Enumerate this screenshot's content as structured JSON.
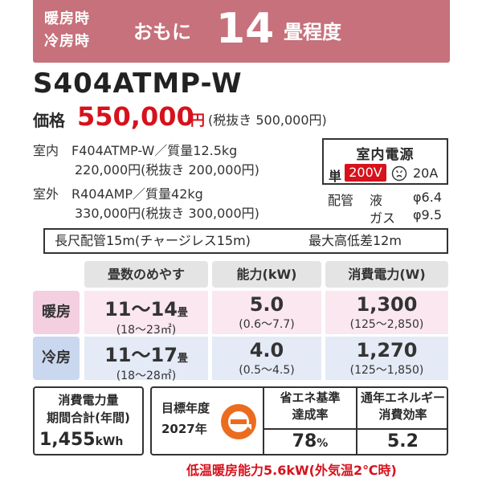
{
  "header": {
    "mode_heat": "暖房時",
    "mode_cool": "冷房時",
    "omoni": "おもに",
    "tatami_number": "14",
    "tatami_unit": "畳程度"
  },
  "model": "S404ATMP-W",
  "price": {
    "label": "価格",
    "value": "550,000",
    "yen": "円",
    "tax_note": "(税抜き 500,000円)"
  },
  "indoor": {
    "line1": "室内　F404ATMP-W／質量12.5kg",
    "line2": "220,000円(税抜き 200,000円)"
  },
  "outdoor": {
    "line1": "室外　R404AMP／質量42kg",
    "line2": "330,000円(税抜き 300,000円)"
  },
  "power_source": {
    "title": "室内電源",
    "phase": "単",
    "voltage": "200V",
    "plug_icon": "plug-outlet-icon",
    "amperage": "20A"
  },
  "piping": {
    "label": "配管",
    "liquid_label": "液",
    "liquid_value": "φ6.4",
    "gas_label": "ガス",
    "gas_value": "φ9.5"
  },
  "long_pipe": {
    "length": "長尺配管15m(チャージレス15m)",
    "height": "最大高低差12m"
  },
  "performance": {
    "headers": [
      "畳数のめやす",
      "能力(kW)",
      "消費電力(W)"
    ],
    "heating": {
      "label": "暖房",
      "tatami_main": "11～14",
      "tatami_unit": "畳",
      "tatami_range": "(18～23㎡)",
      "capacity": "5.0",
      "capacity_range": "(0.6～7.7)",
      "power": "1,300",
      "power_range": "(125～2,850)"
    },
    "cooling": {
      "label": "冷房",
      "tatami_main": "11～17",
      "tatami_unit": "畳",
      "tatami_range": "(18～28㎡)",
      "capacity": "4.0",
      "capacity_range": "(0.5～4.5)",
      "power": "1,270",
      "power_range": "(125～1,850)"
    }
  },
  "annual_power": {
    "title1": "消費電力量",
    "title2": "期間合計(年間)",
    "value": "1,455",
    "unit": "kWh"
  },
  "energy": {
    "target_label": "目標年度",
    "target_year": "2027年",
    "mark_icon": "e-energy-saving-mark-icon",
    "achievement_title": "省エネ基準\n達成率",
    "achievement_value": "78",
    "achievement_unit": "%",
    "apf_title": "通年エネルギー\n消費効率",
    "apf_value": "5.2"
  },
  "footnote": "低温暖房能力5.6kW(外気温2℃時)",
  "colors": {
    "header_bg": "#c6717b",
    "price_red": "#d6121c",
    "heat_label_bg": "#f3cfe0",
    "heat_cell_bg": "#fbe7ef",
    "cool_label_bg": "#c9d7ef",
    "cool_cell_bg": "#e4eaf6",
    "energy_mark_orange": "#ec6c1f"
  }
}
